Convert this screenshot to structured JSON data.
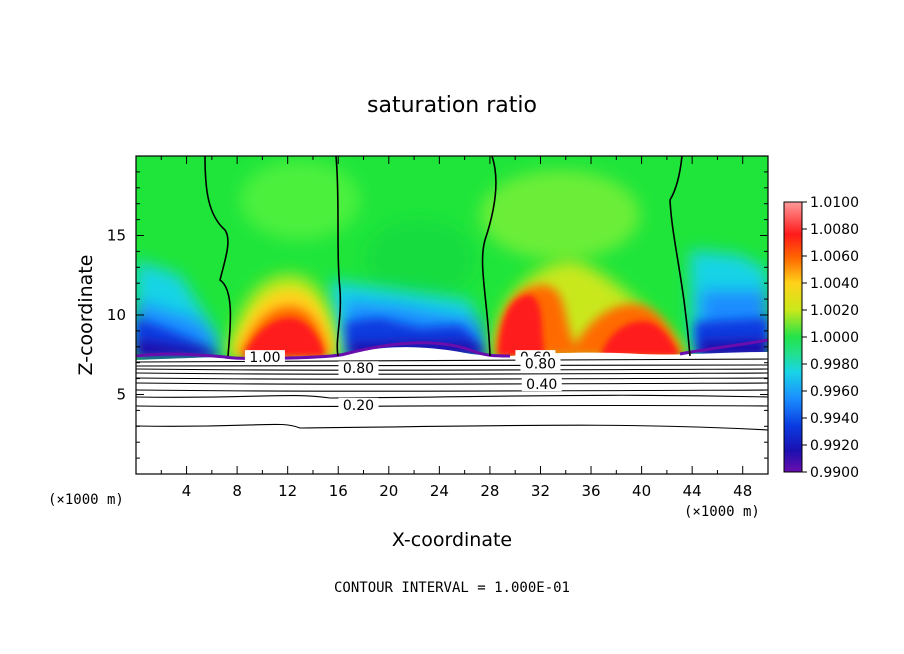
{
  "chart_data": {
    "type": "heatmap",
    "title": "saturation ratio",
    "xlabel": "X-coordinate",
    "ylabel": "Z-coordinate",
    "x_unit": "(×1000 m)",
    "xlim": [
      0,
      50
    ],
    "ylim": [
      0,
      20
    ],
    "xticks": [
      "4",
      "8",
      "12",
      "16",
      "20",
      "24",
      "28",
      "32",
      "36",
      "40",
      "44",
      "48"
    ],
    "yticks": [
      "5",
      "10",
      "15"
    ],
    "colorbar": {
      "min": 0.99,
      "max": 1.01,
      "labels": [
        "1.0100",
        "1.0080",
        "1.0060",
        "1.0040",
        "1.0020",
        "1.0000",
        "0.9980",
        "0.9960",
        "0.9940",
        "0.9920",
        "0.9900"
      ],
      "colors": [
        "#6a0dad",
        "#1a10b0",
        "#0a3ae0",
        "#1a8cff",
        "#19d4e6",
        "#22e08a",
        "#22e34a",
        "#c9e81a",
        "#ffd21a",
        "#ff6a00",
        "#ff1a1a",
        "#ff9a9a"
      ]
    },
    "contour_labels": [
      {
        "text": "1.00",
        "x": 10.2,
        "z": 7.1
      },
      {
        "text": "0.80",
        "x": 17.6,
        "z": 6.4
      },
      {
        "text": "0.60",
        "x": 31.6,
        "z": 7.1
      },
      {
        "text": "0.80",
        "x": 32.0,
        "z": 6.7
      },
      {
        "text": "0.40",
        "x": 32.1,
        "z": 5.4
      },
      {
        "text": "0.20",
        "x": 17.6,
        "z": 4.1
      }
    ],
    "note": "CONTOUR INTERVAL = 1.000E-01"
  },
  "colors": {
    "background": "#ffffff",
    "field_green": "#1fe53a"
  }
}
